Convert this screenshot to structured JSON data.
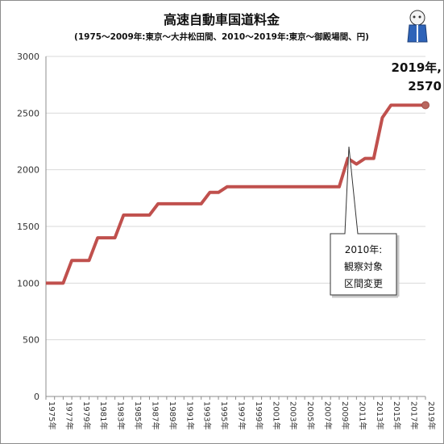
{
  "chart_data": {
    "type": "line",
    "title": "高速自動車国道料金",
    "subtitle": "(1975〜2009年:東京〜大井松田間、2010〜2019年:東京〜御殿場間、円)",
    "ylim": [
      0,
      3000
    ],
    "yticks": [
      "0",
      "500",
      "1000",
      "1500",
      "2000",
      "2500",
      "3000"
    ],
    "x": [
      1975,
      1976,
      1977,
      1978,
      1979,
      1980,
      1981,
      1982,
      1983,
      1984,
      1985,
      1986,
      1987,
      1988,
      1989,
      1990,
      1991,
      1992,
      1993,
      1994,
      1995,
      1996,
      1997,
      1998,
      1999,
      2000,
      2001,
      2002,
      2003,
      2004,
      2005,
      2006,
      2007,
      2008,
      2009,
      2010,
      2011,
      2012,
      2013,
      2014,
      2015,
      2016,
      2017,
      2018,
      2019
    ],
    "x_tick_labels": [
      "1975年",
      "1977年",
      "1979年",
      "1981年",
      "1983年",
      "1985年",
      "1987年",
      "1989年",
      "1991年",
      "1993年",
      "1995年",
      "1997年",
      "1999年",
      "2001年",
      "2003年",
      "2005年",
      "2007年",
      "2009年",
      "2011年",
      "2013年",
      "2015年",
      "2017年",
      "2019年"
    ],
    "series": [
      {
        "values": [
          1000,
          1000,
          1000,
          1200,
          1200,
          1200,
          1400,
          1400,
          1400,
          1600,
          1600,
          1600,
          1600,
          1700,
          1700,
          1700,
          1700,
          1700,
          1700,
          1800,
          1800,
          1850,
          1850,
          1850,
          1850,
          1850,
          1850,
          1850,
          1850,
          1850,
          1850,
          1850,
          1850,
          1850,
          1850,
          2100,
          2050,
          2100,
          2100,
          2460,
          2570,
          2570,
          2570,
          2570,
          2570
        ],
        "color": "#c0504d"
      }
    ],
    "grid": true,
    "annotations": [
      {
        "label_line1": "2019年,",
        "label_line2": "2570"
      },
      {
        "label_line1": "2010年:",
        "label_line2": "観察対象",
        "label_line3": "区間変更"
      }
    ]
  }
}
